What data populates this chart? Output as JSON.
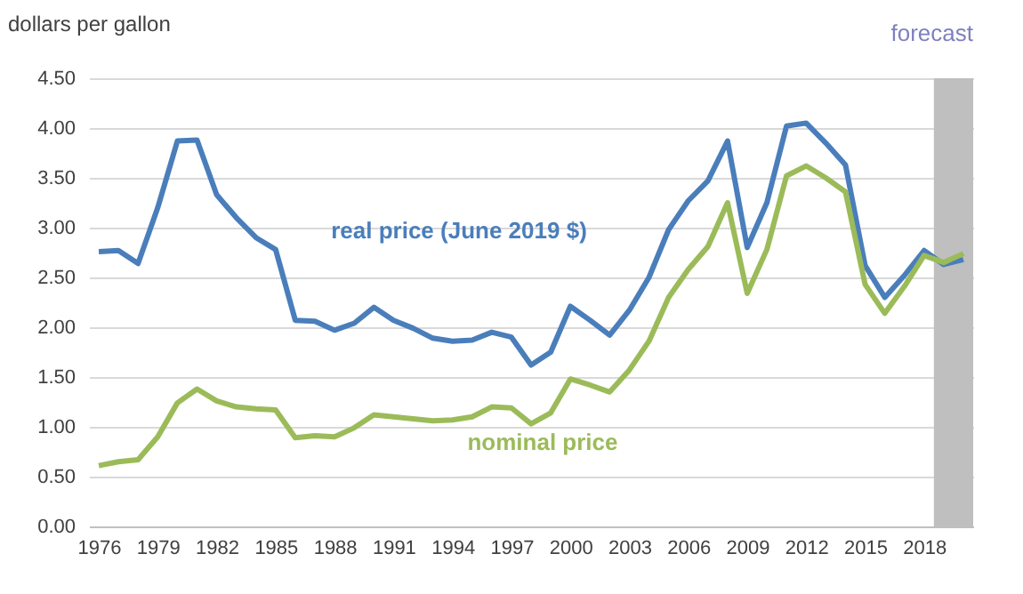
{
  "chart_data": {
    "type": "line",
    "ylabel": "dollars per gallon",
    "x": [
      1976,
      1977,
      1978,
      1979,
      1980,
      1981,
      1982,
      1983,
      1984,
      1985,
      1986,
      1987,
      1988,
      1989,
      1990,
      1991,
      1992,
      1993,
      1994,
      1995,
      1996,
      1997,
      1998,
      1999,
      2000,
      2001,
      2002,
      2003,
      2004,
      2005,
      2006,
      2007,
      2008,
      2009,
      2010,
      2011,
      2012,
      2013,
      2014,
      2015,
      2016,
      2017,
      2018,
      2019,
      2020
    ],
    "series": [
      {
        "name": "real price (June 2019 $)",
        "color": "#4a7ebb",
        "values": [
          2.76,
          2.77,
          2.64,
          3.2,
          3.87,
          3.88,
          3.33,
          3.1,
          2.9,
          2.78,
          2.07,
          2.06,
          1.97,
          2.04,
          2.2,
          2.07,
          1.99,
          1.89,
          1.86,
          1.87,
          1.95,
          1.9,
          1.62,
          1.75,
          2.21,
          2.07,
          1.92,
          2.17,
          2.5,
          2.98,
          3.27,
          3.47,
          3.87,
          2.8,
          3.25,
          4.02,
          4.05,
          3.85,
          3.63,
          2.62,
          2.3,
          2.52,
          2.77,
          2.63,
          2.68
        ]
      },
      {
        "name": "nominal price",
        "color": "#9bbb59",
        "values": [
          0.61,
          0.65,
          0.67,
          0.9,
          1.24,
          1.38,
          1.26,
          1.2,
          1.18,
          1.17,
          0.89,
          0.91,
          0.9,
          0.99,
          1.12,
          1.1,
          1.08,
          1.06,
          1.07,
          1.1,
          1.2,
          1.19,
          1.03,
          1.14,
          1.48,
          1.42,
          1.35,
          1.57,
          1.86,
          2.3,
          2.58,
          2.81,
          3.25,
          2.34,
          2.78,
          3.52,
          3.62,
          3.5,
          3.36,
          2.43,
          2.14,
          2.41,
          2.72,
          2.65,
          2.74
        ]
      }
    ],
    "xlim": [
      1975.5,
      2020.5
    ],
    "xticks": [
      1976,
      1979,
      1982,
      1985,
      1988,
      1991,
      1994,
      1997,
      2000,
      2003,
      2006,
      2009,
      2012,
      2015,
      2018
    ],
    "ylim": [
      0,
      4.5
    ],
    "yticks": [
      {
        "value": 0,
        "label": "0.00"
      },
      {
        "value": 0.5,
        "label": "0.50"
      },
      {
        "value": 1,
        "label": "1.00"
      },
      {
        "value": 1.5,
        "label": "1.50"
      },
      {
        "value": 2,
        "label": "2.00"
      },
      {
        "value": 2.5,
        "label": "2.50"
      },
      {
        "value": 3,
        "label": "3.00"
      },
      {
        "value": 3.5,
        "label": "3.50"
      },
      {
        "value": 4,
        "label": "4.00"
      },
      {
        "value": 4.5,
        "label": "4.50"
      }
    ],
    "bands": [
      {
        "axis": "x",
        "from": 2018.5,
        "to": 2020.5,
        "label": "forecast",
        "color": "#bfbfbf"
      }
    ],
    "grid": "y",
    "legend": false,
    "marker": "none",
    "line_style": "solid"
  }
}
